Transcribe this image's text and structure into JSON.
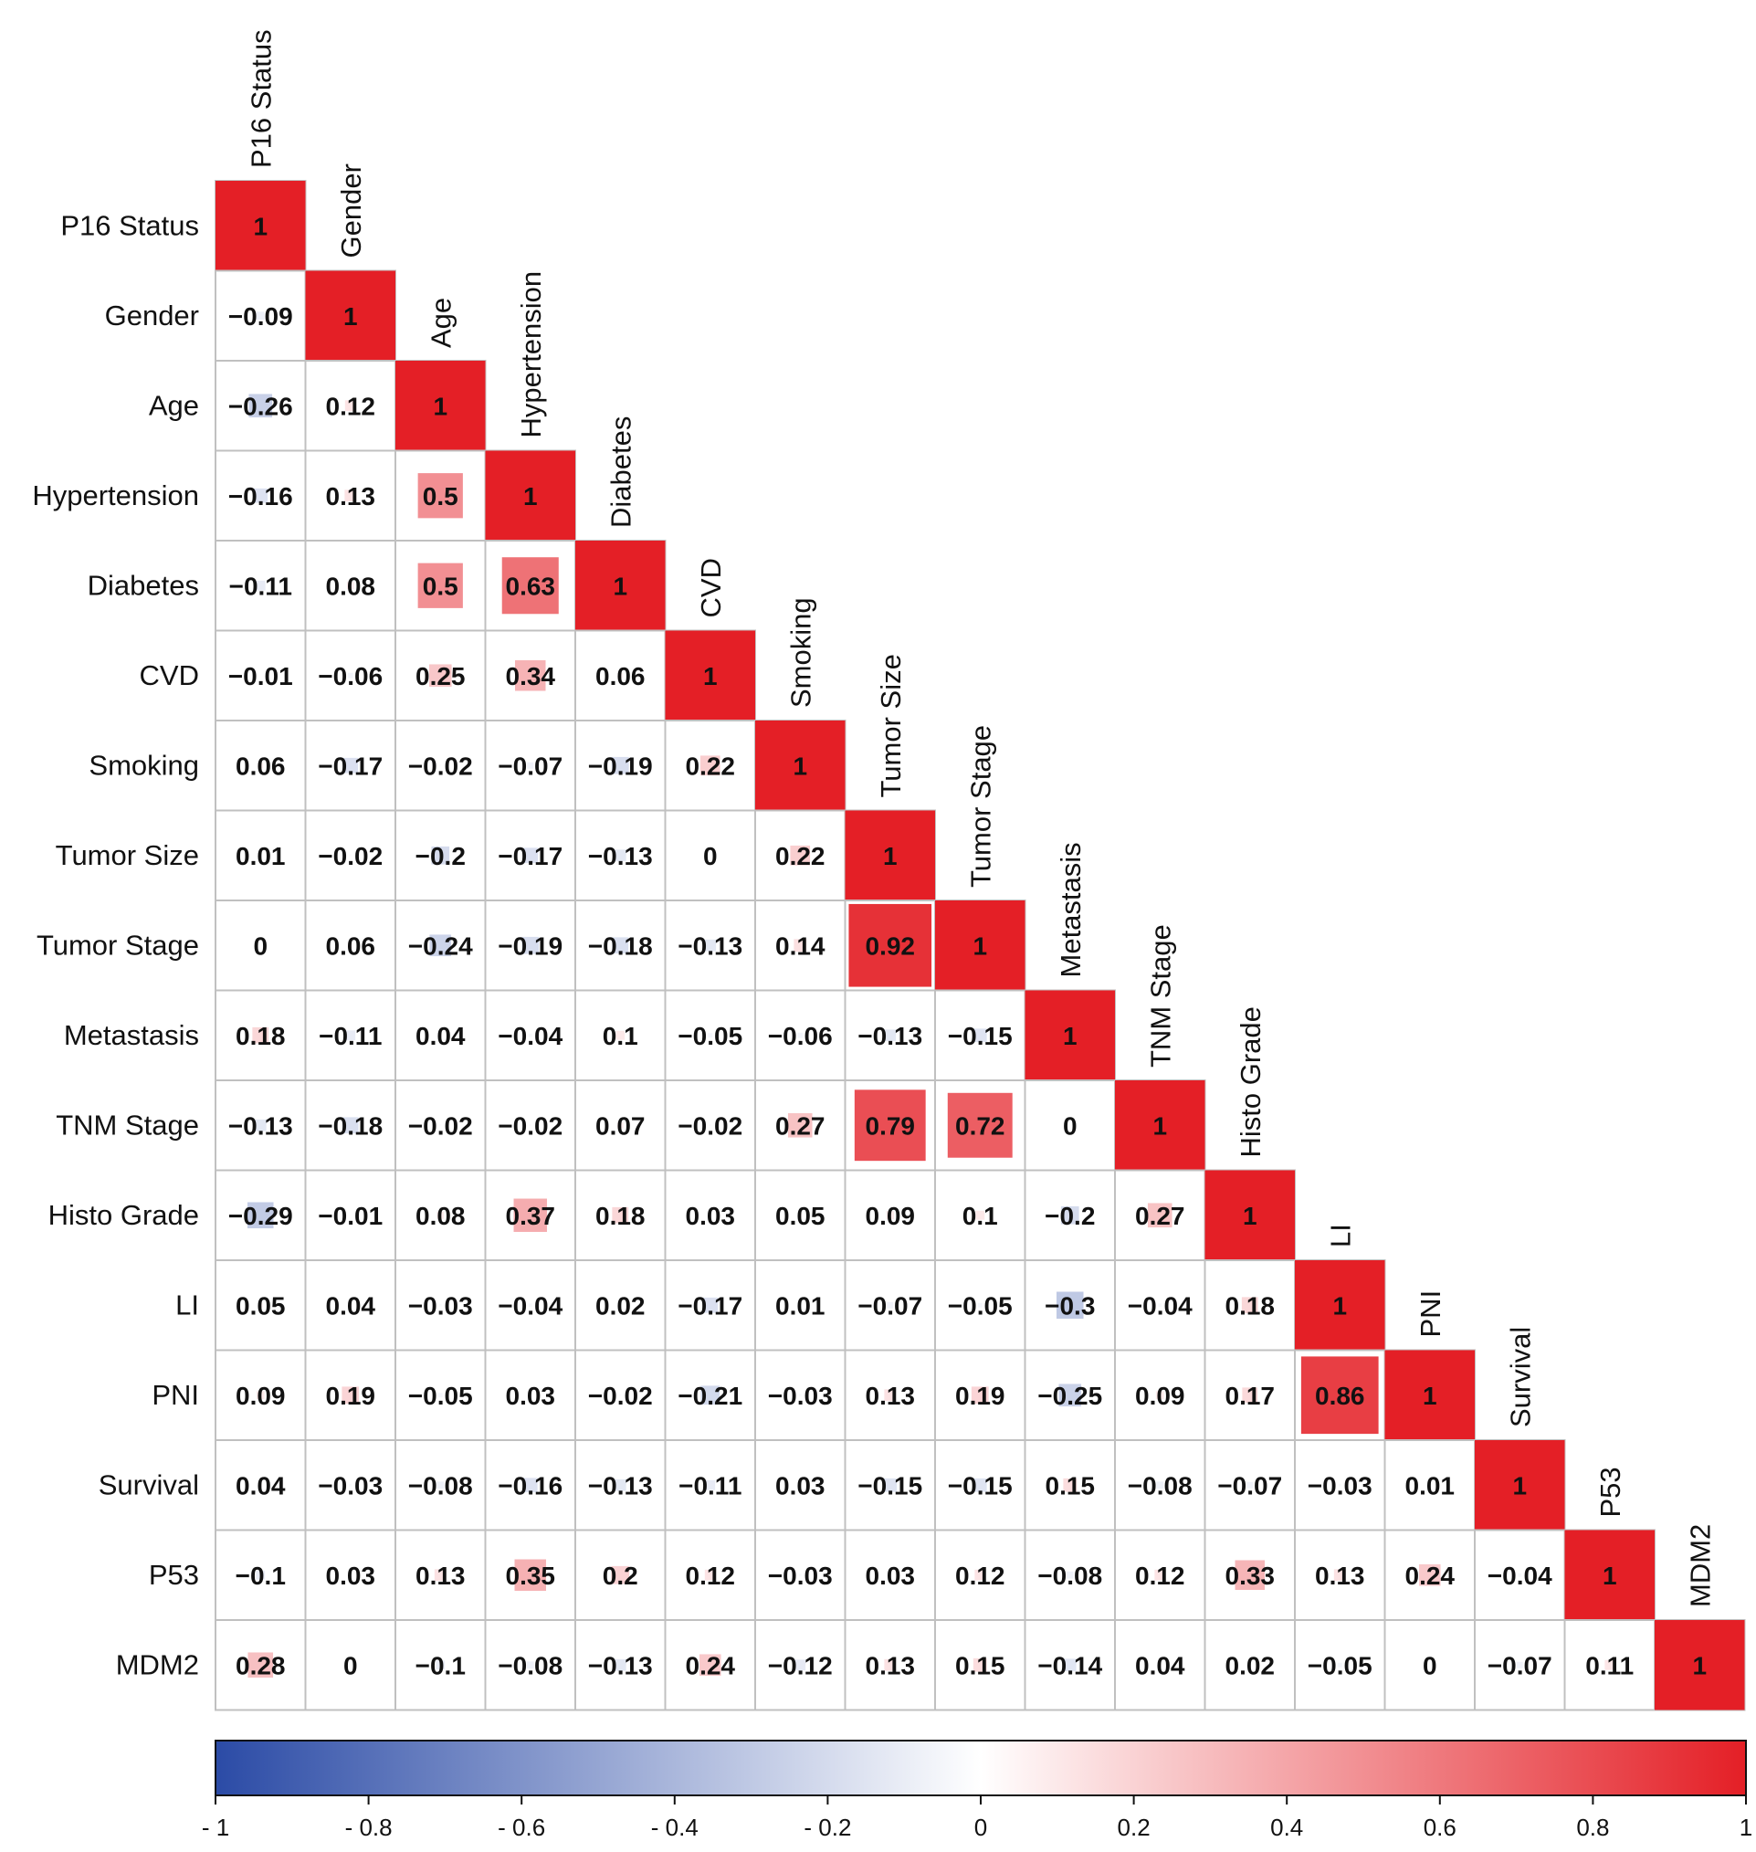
{
  "chart_data": {
    "type": "heatmap",
    "variables": [
      "P16 Status",
      "Gender",
      "Age",
      "Hypertension",
      "Diabetes",
      "CVD",
      "Smoking",
      "Tumor Size",
      "Tumor Stage",
      "Metastasis",
      "TNM Stage",
      "Histo Grade",
      "LI",
      "PNI",
      "Survival",
      "P53",
      "MDM2"
    ],
    "values": [
      [
        1
      ],
      [
        -0.09,
        1
      ],
      [
        -0.26,
        0.12,
        1
      ],
      [
        -0.16,
        0.13,
        0.5,
        1
      ],
      [
        -0.11,
        0.08,
        0.5,
        0.63,
        1
      ],
      [
        -0.01,
        -0.06,
        0.25,
        0.34,
        0.06,
        1
      ],
      [
        0.06,
        -0.17,
        -0.02,
        -0.07,
        -0.19,
        0.22,
        1
      ],
      [
        0.01,
        -0.02,
        -0.2,
        -0.17,
        -0.13,
        0,
        0.22,
        1
      ],
      [
        0,
        0.06,
        -0.24,
        -0.19,
        -0.18,
        -0.13,
        0.14,
        0.92,
        1
      ],
      [
        0.18,
        -0.11,
        0.04,
        -0.04,
        0.1,
        -0.05,
        -0.06,
        -0.13,
        -0.15,
        1
      ],
      [
        -0.13,
        -0.18,
        -0.02,
        -0.02,
        0.07,
        -0.02,
        0.27,
        0.79,
        0.72,
        0,
        1
      ],
      [
        -0.29,
        -0.01,
        0.08,
        0.37,
        0.18,
        0.03,
        0.05,
        0.09,
        0.1,
        -0.2,
        0.27,
        1
      ],
      [
        0.05,
        0.04,
        -0.03,
        -0.04,
        0.02,
        -0.17,
        0.01,
        -0.07,
        -0.05,
        -0.3,
        -0.04,
        0.18,
        1
      ],
      [
        0.09,
        0.19,
        -0.05,
        0.03,
        -0.02,
        -0.21,
        -0.03,
        0.13,
        0.19,
        -0.25,
        0.09,
        0.17,
        0.86,
        1
      ],
      [
        0.04,
        -0.03,
        -0.08,
        -0.16,
        -0.13,
        -0.11,
        0.03,
        -0.15,
        -0.15,
        0.15,
        -0.08,
        -0.07,
        -0.03,
        0.01,
        1
      ],
      [
        -0.1,
        0.03,
        0.13,
        0.35,
        0.2,
        0.12,
        -0.03,
        0.03,
        0.12,
        -0.08,
        0.12,
        0.33,
        0.13,
        0.24,
        -0.04,
        1
      ],
      [
        0.28,
        0,
        -0.1,
        -0.08,
        -0.13,
        0.24,
        -0.12,
        0.13,
        0.15,
        -0.14,
        0.04,
        0.02,
        -0.05,
        0,
        -0.07,
        0.11,
        1
      ]
    ],
    "value_labels": [
      [
        "1"
      ],
      [
        "−0.09",
        "1"
      ],
      [
        "−0.26",
        "0.12",
        "1"
      ],
      [
        "−0.16",
        "0.13",
        "0.5",
        "1"
      ],
      [
        "−0.11",
        "0.08",
        "0.5",
        "0.63",
        "1"
      ],
      [
        "−0.01",
        "−0.06",
        "0.25",
        "0.34",
        "0.06",
        "1"
      ],
      [
        "0.06",
        "−0.17",
        "−0.02",
        "−0.07",
        "−0.19",
        "0.22",
        "1"
      ],
      [
        "0.01",
        "−0.02",
        "−0.2",
        "−0.17",
        "−0.13",
        "0",
        "0.22",
        "1"
      ],
      [
        "0",
        "0.06",
        "−0.24",
        "−0.19",
        "−0.18",
        "−0.13",
        "0.14",
        "0.92",
        "1"
      ],
      [
        "0.18",
        "−0.11",
        "0.04",
        "−0.04",
        "0.1",
        "−0.05",
        "−0.06",
        "−0.13",
        "−0.15",
        "1"
      ],
      [
        "−0.13",
        "−0.18",
        "−0.02",
        "−0.02",
        "0.07",
        "−0.02",
        "0.27",
        "0.79",
        "0.72",
        "0",
        "1"
      ],
      [
        "−0.29",
        "−0.01",
        "0.08",
        "0.37",
        "0.18",
        "0.03",
        "0.05",
        "0.09",
        "0.1",
        "−0.2",
        "0.27",
        "1"
      ],
      [
        "0.05",
        "0.04",
        "−0.03",
        "−0.04",
        "0.02",
        "−0.17",
        "0.01",
        "−0.07",
        "−0.05",
        "−0.3",
        "−0.04",
        "0.18",
        "1"
      ],
      [
        "0.09",
        "0.19",
        "−0.05",
        "0.03",
        "−0.02",
        "−0.21",
        "−0.03",
        "0.13",
        "0.19",
        "−0.25",
        "0.09",
        "0.17",
        "0.86",
        "1"
      ],
      [
        "0.04",
        "−0.03",
        "−0.08",
        "−0.16",
        "−0.13",
        "−0.11",
        "0.03",
        "−0.15",
        "−0.15",
        "0.15",
        "−0.08",
        "−0.07",
        "−0.03",
        "0.01",
        "1"
      ],
      [
        "−0.1",
        "0.03",
        "0.13",
        "0.35",
        "0.2",
        "0.12",
        "−0.03",
        "0.03",
        "0.12",
        "−0.08",
        "0.12",
        "0.33",
        "0.13",
        "0.24",
        "−0.04",
        "1"
      ],
      [
        "0.28",
        "0",
        "−0.1",
        "−0.08",
        "−0.13",
        "0.24",
        "−0.12",
        "0.13",
        "0.15",
        "−0.14",
        "0.04",
        "0.02",
        "−0.05",
        "0",
        "−0.07",
        "0.11",
        "1"
      ]
    ],
    "color_range": [
      -1,
      1
    ],
    "colors": {
      "low": "#2b4ba6",
      "mid": "#ffffff",
      "high": "#e41f26",
      "grid": "#c0c0c0"
    },
    "colorbar": {
      "position": "bottom",
      "ticks": [
        -1,
        -0.8,
        -0.6,
        -0.4,
        -0.2,
        0,
        0.2,
        0.4,
        0.6,
        0.8,
        1
      ],
      "tick_labels": [
        "- 1",
        "- 0.8",
        "- 0.6",
        "- 0.4",
        "- 0.2",
        "0",
        "0.2",
        "0.4",
        "0.6",
        "0.8",
        "1"
      ]
    },
    "layout": "lower-triangle",
    "title": "",
    "xlabel": "",
    "ylabel": ""
  }
}
